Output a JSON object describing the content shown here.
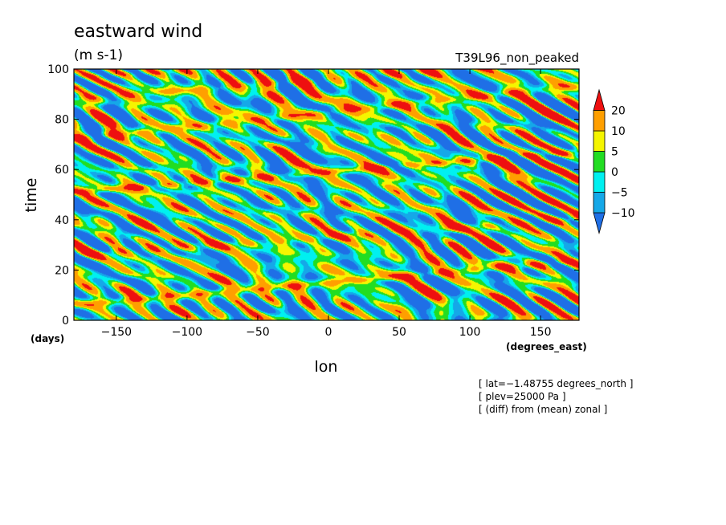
{
  "chart_data": {
    "type": "heatmap",
    "title": "eastward wind",
    "units": "(m s-1)",
    "experiment": "T39L96_non_peaked",
    "xlabel": "lon",
    "xunits": "(degrees_east)",
    "ylabel": "time",
    "yunits": "(days)",
    "xlim": [
      -180,
      177.1875
    ],
    "ylim": [
      0,
      100
    ],
    "xticks": [
      -150,
      -100,
      -50,
      0,
      50,
      100,
      150
    ],
    "yticks": [
      0,
      20,
      40,
      60,
      80,
      100
    ],
    "xtick_labels": [
      "−150",
      "−100",
      "−50",
      "0",
      "50",
      "100",
      "150"
    ],
    "ytick_labels": [
      "0",
      "20",
      "40",
      "60",
      "80",
      "100"
    ],
    "colorbar": {
      "levels": [
        -10,
        -5,
        0,
        5,
        10,
        20
      ],
      "labels": [
        "−10",
        "−5",
        "0",
        "5",
        "10",
        "20"
      ],
      "colors": [
        "#1f6fe6",
        "#15a8e8",
        "#00f0f0",
        "#22dd22",
        "#f5f500",
        "#ff9f00",
        "#ee1010"
      ]
    },
    "notes": [
      "[ lat=−1.48755 degrees_north ]",
      "[ plev=25000 Pa ]",
      "[ (diff) from (mean) zonal ]"
    ],
    "streaks": [
      {
        "t0": 6,
        "slope": 0.05,
        "amp": 14,
        "width": 1.6
      },
      {
        "t0": 26,
        "slope": 0.04,
        "amp": 10,
        "width": 1.8
      },
      {
        "t0": 51,
        "slope": 0.045,
        "amp": 14,
        "width": 1.4
      },
      {
        "t0": 72,
        "slope": 0.06,
        "amp": 13,
        "width": 1.8
      },
      {
        "t0": 88,
        "slope": 0.045,
        "amp": 10,
        "width": 1.8
      },
      {
        "t0": 97,
        "slope": 0.03,
        "amp": 8,
        "width": 1.4
      }
    ]
  }
}
